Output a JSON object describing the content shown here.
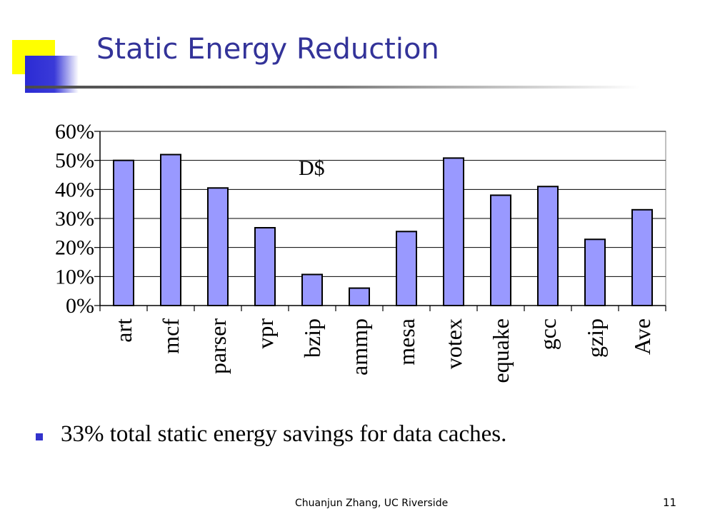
{
  "slide": {
    "title": "Static Energy Reduction",
    "bullet": "33% total static energy savings for data caches.",
    "footer": "Chuanjun Zhang, UC Riverside",
    "page_number": "11"
  },
  "colors": {
    "title": "#333399",
    "bar_fill": "#9999ff",
    "bullet": "#3333cc",
    "accent_yellow": "#ffff00"
  },
  "chart_data": {
    "type": "bar",
    "title": "",
    "annotation": "D$",
    "categories": [
      "art",
      "mcf",
      "parser",
      "vpr",
      "bzip",
      "ammp",
      "mesa",
      "votex",
      "equake",
      "gcc",
      "gzip",
      "Ave"
    ],
    "values": [
      50,
      52,
      40.5,
      26.8,
      10.7,
      6,
      25.5,
      50.8,
      38,
      41,
      22.8,
      33
    ],
    "xlabel": "",
    "ylabel": "",
    "ylim": [
      0,
      60
    ],
    "yticks": [
      0,
      10,
      20,
      30,
      40,
      50,
      60
    ],
    "ytick_labels": [
      "0%",
      "10%",
      "20%",
      "30%",
      "40%",
      "50%",
      "60%"
    ],
    "grid": true,
    "legend": "none"
  }
}
